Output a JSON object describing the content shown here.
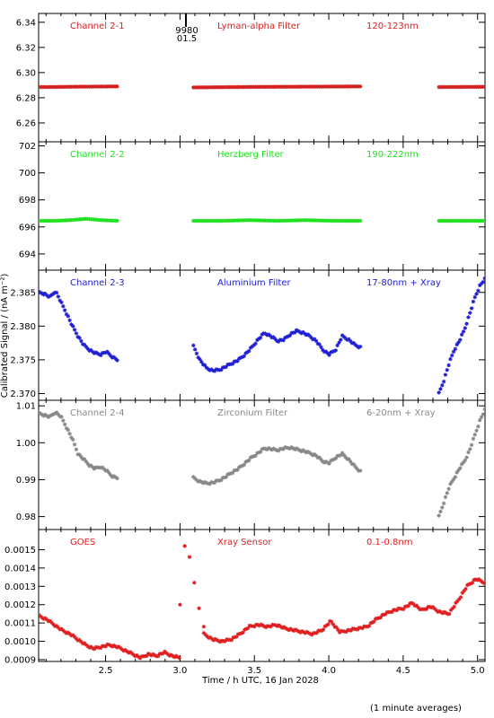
{
  "chart_data": {
    "type": "scatter",
    "xlabel": "Time / h UTC, 16 Jan 2028",
    "ylabel": "Calibrated Signal / (nA m⁻²)",
    "footnote": "(1 minute averages)",
    "xlim": [
      2.05,
      5.05
    ],
    "xticks": [
      2.5,
      3.0,
      3.5,
      4.0,
      4.5,
      5.0
    ],
    "xtick_labels": [
      "2.5",
      "3.0",
      "3.5",
      "4.0",
      "4.5",
      "5.0"
    ],
    "marker": "asterisk",
    "panels": [
      {
        "channel": "Channel 2-1",
        "filter": "Lyman-alpha Filter",
        "band": "120-123nm",
        "color": "#d42020",
        "ylim": [
          6.245,
          6.347
        ],
        "yticks": [
          6.26,
          6.28,
          6.3,
          6.32,
          6.34
        ],
        "ytick_labels": [
          "6.26",
          "6.28",
          "6.30",
          "6.32",
          "6.34"
        ],
        "marker_annotation": {
          "x": 3.04,
          "lines": [
            "9980",
            "01.5"
          ]
        },
        "series": [
          {
            "x_start": 2.05,
            "x_end": 2.58,
            "values": [
              6.2885,
              6.2886,
              6.2888,
              6.2889,
              6.289
            ]
          },
          {
            "x_start": 3.09,
            "x_end": 4.22,
            "values": [
              6.2882,
              6.2884,
              6.2886,
              6.2887,
              6.2888,
              6.2889,
              6.289
            ]
          },
          {
            "x_start": 4.74,
            "x_end": 5.05,
            "values": [
              6.2885,
              6.2886,
              6.2887
            ]
          }
        ]
      },
      {
        "channel": "Channel 2-2",
        "filter": "Herzberg Filter",
        "band": "190-222nm",
        "color": "#22e022",
        "ylim": [
          692.8,
          702.3
        ],
        "yticks": [
          694,
          696,
          698,
          700,
          702
        ],
        "ytick_labels": [
          "694",
          "696",
          "698",
          "700",
          "702"
        ],
        "series": [
          {
            "x_start": 2.05,
            "x_end": 2.58,
            "values": [
              696.45,
              696.45,
              696.5,
              696.6,
              696.5,
              696.45
            ]
          },
          {
            "x_start": 3.09,
            "x_end": 4.22,
            "values": [
              696.45,
              696.45,
              696.5,
              696.45,
              696.5,
              696.45,
              696.45
            ]
          },
          {
            "x_start": 4.74,
            "x_end": 5.05,
            "values": [
              696.45,
              696.45,
              696.45
            ]
          }
        ]
      },
      {
        "channel": "Channel 2-3",
        "filter": "Aluminium Filter",
        "band": "17-80nm + Xray",
        "color": "#2020d4",
        "ylim": [
          2.369,
          2.3883
        ],
        "yticks": [
          2.37,
          2.375,
          2.38,
          2.385
        ],
        "ytick_labels": [
          "2.370",
          "2.375",
          "2.380",
          "2.385"
        ],
        "series": [
          {
            "x_start": 2.05,
            "x_end": 2.58,
            "values": [
              2.385,
              2.3848,
              2.3843,
              2.3852,
              2.3835,
              2.3818,
              2.38,
              2.3785,
              2.3772,
              2.3765,
              2.376,
              2.3758,
              2.3762,
              2.3755,
              2.375
            ]
          },
          {
            "x_start": 3.09,
            "x_end": 4.22,
            "values": [
              2.377,
              2.375,
              2.3738,
              2.3734,
              2.3735,
              2.374,
              2.3745,
              2.375,
              2.3758,
              2.3768,
              2.378,
              2.379,
              2.3785,
              2.3778,
              2.378,
              2.3788,
              2.3793,
              2.379,
              2.3785,
              2.3778,
              2.3765,
              2.3758,
              2.3765,
              2.3785,
              2.378,
              2.3772,
              2.3768
            ]
          },
          {
            "x_start": 4.74,
            "x_end": 5.05,
            "values": [
              2.37,
              2.372,
              2.3745,
              2.3765,
              2.3778,
              2.3795,
              2.3818,
              2.3842,
              2.386,
              2.387
            ]
          }
        ]
      },
      {
        "channel": "Channel 2-4",
        "filter": "Zirconium Filter",
        "band": "6-20nm + Xray",
        "color": "#888888",
        "ylim": [
          0.9765,
          1.0115
        ],
        "yticks": [
          0.98,
          0.99,
          1.0,
          1.01
        ],
        "ytick_labels": [
          "0.98",
          "0.99",
          "1.00",
          "1.01"
        ],
        "series": [
          {
            "x_start": 2.05,
            "x_end": 2.58,
            "values": [
              1.008,
              1.0075,
              1.007,
              1.0083,
              1.007,
              1.004,
              1.001,
              0.997,
              0.9955,
              0.994,
              0.993,
              0.9935,
              0.9925,
              0.991,
              0.9905
            ]
          },
          {
            "x_start": 3.09,
            "x_end": 4.22,
            "values": [
              0.9905,
              0.9895,
              0.989,
              0.9892,
              0.9898,
              0.9908,
              0.992,
              0.993,
              0.9945,
              0.996,
              0.9972,
              0.9985,
              0.9983,
              0.998,
              0.9985,
              0.9987,
              0.9982,
              0.9978,
              0.9972,
              0.9965,
              0.995,
              0.9945,
              0.996,
              0.997,
              0.9955,
              0.9935,
              0.992
            ]
          },
          {
            "x_start": 4.74,
            "x_end": 5.05,
            "values": [
              0.98,
              0.984,
              0.988,
              0.9905,
              0.993,
              0.995,
              0.998,
              1.002,
              1.006,
              1.009
            ]
          }
        ]
      },
      {
        "channel": "GOES",
        "filter": "Xray Sensor",
        "band": "0.1-0.8nm",
        "color": "#e02020",
        "ylim": [
          0.00089,
          0.00161
        ],
        "yticks": [
          0.0009,
          0.001,
          0.0011,
          0.0012,
          0.0013,
          0.0014,
          0.0015
        ],
        "ytick_labels": [
          "0.0009",
          "0.0010",
          "0.0011",
          "0.0012",
          "0.0013",
          "0.0014",
          "0.0015"
        ],
        "series": [
          {
            "x_start": 2.05,
            "x_end": 3.0,
            "values": [
              0.00114,
              0.00112,
              0.00109,
              0.00106,
              0.00104,
              0.00101,
              0.00098,
              0.00096,
              0.00097,
              0.00098,
              0.00097,
              0.00095,
              0.00093,
              0.00091,
              0.00093,
              0.00092,
              0.00094,
              0.00092,
              0.00091
            ]
          },
          {
            "x_start": 3.0,
            "x_end": 3.16,
            "values": [
              0.0012,
              0.00152,
              0.00146,
              0.00132,
              0.00118,
              0.00108
            ]
          },
          {
            "x_start": 3.16,
            "x_end": 5.05,
            "values": [
              0.00104,
              0.00101,
              0.001,
              0.00101,
              0.00104,
              0.00108,
              0.00109,
              0.00108,
              0.00109,
              0.00107,
              0.00106,
              0.00105,
              0.00104,
              0.00106,
              0.00111,
              0.00105,
              0.00106,
              0.00107,
              0.00108,
              0.00112,
              0.00115,
              0.00117,
              0.00118,
              0.00121,
              0.00117,
              0.00119,
              0.00116,
              0.00115,
              0.00122,
              0.0013,
              0.00134,
              0.00132
            ]
          }
        ]
      }
    ]
  }
}
